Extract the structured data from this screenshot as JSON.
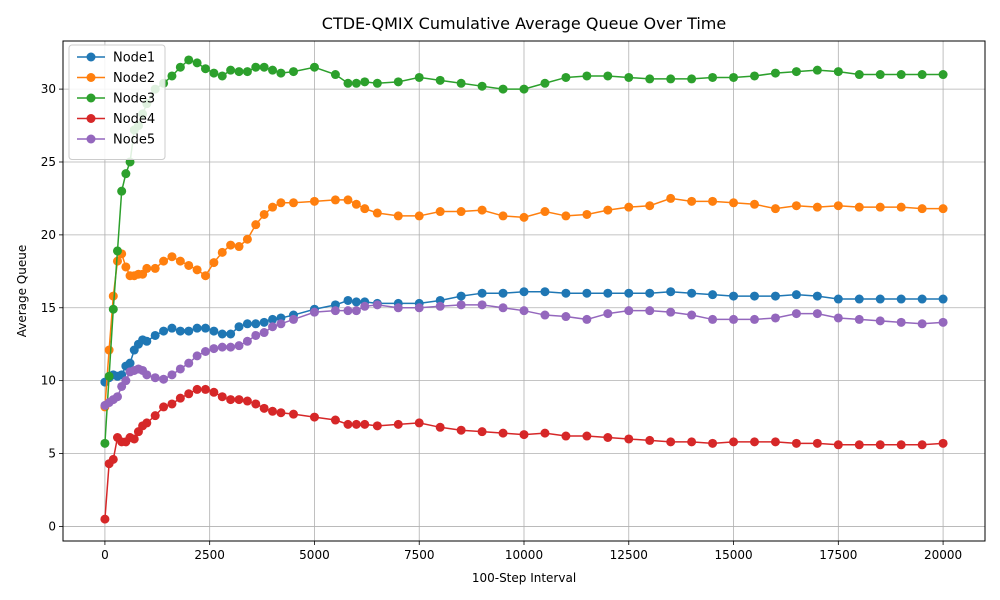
{
  "chart_data": {
    "type": "line",
    "title": "CTDE-QMIX Cumulative Average Queue Over Time",
    "xlabel": "100-Step Interval",
    "ylabel": "Average Queue",
    "xlim": [
      -1000,
      21000
    ],
    "ylim": [
      -1.0,
      33.3
    ],
    "xticks": [
      0,
      2500,
      5000,
      7500,
      10000,
      12500,
      15000,
      17500,
      20000
    ],
    "xtick_labels": [
      "0",
      "2500",
      "5000",
      "7500",
      "10000",
      "12500",
      "15000",
      "17500",
      "20000"
    ],
    "yticks": [
      0,
      5,
      10,
      15,
      20,
      25,
      30
    ],
    "ytick_labels": [
      "0",
      "5",
      "10",
      "15",
      "20",
      "25",
      "30"
    ],
    "grid": true,
    "legend_position": "upper-left",
    "x": [
      0,
      100,
      200,
      300,
      400,
      500,
      600,
      700,
      800,
      900,
      1000,
      1200,
      1400,
      1600,
      1800,
      2000,
      2200,
      2400,
      2600,
      2800,
      3000,
      3200,
      3400,
      3600,
      3800,
      4000,
      4200,
      4500,
      5000,
      5500,
      5800,
      6000,
      6200,
      6500,
      7000,
      7500,
      8000,
      8500,
      9000,
      9500,
      10000,
      10500,
      11000,
      11500,
      12000,
      12500,
      13000,
      13500,
      14000,
      14500,
      15000,
      15500,
      16000,
      16500,
      17000,
      17500,
      18000,
      18500,
      19000,
      19500,
      20000
    ],
    "series": [
      {
        "name": "Node1",
        "color": "#1f77b4",
        "values": [
          9.9,
          10.2,
          10.4,
          10.3,
          10.4,
          11.0,
          11.2,
          12.1,
          12.5,
          12.8,
          12.7,
          13.1,
          13.4,
          13.6,
          13.4,
          13.4,
          13.6,
          13.6,
          13.4,
          13.2,
          13.2,
          13.7,
          13.9,
          13.9,
          14.0,
          14.2,
          14.3,
          14.5,
          14.9,
          15.2,
          15.5,
          15.4,
          15.4,
          15.3,
          15.3,
          15.3,
          15.5,
          15.8,
          16.0,
          16.0,
          16.1,
          16.1,
          16.0,
          16.0,
          16.0,
          16.0,
          16.0,
          16.1,
          16.0,
          15.9,
          15.8,
          15.8,
          15.8,
          15.9,
          15.8,
          15.6,
          15.6,
          15.6,
          15.6,
          15.6,
          15.6
        ]
      },
      {
        "name": "Node2",
        "color": "#ff7f0e",
        "values": [
          8.2,
          12.1,
          15.8,
          18.2,
          18.7,
          17.8,
          17.2,
          17.2,
          17.3,
          17.3,
          17.7,
          17.7,
          18.2,
          18.5,
          18.2,
          17.9,
          17.6,
          17.2,
          18.1,
          18.8,
          19.3,
          19.2,
          19.7,
          20.7,
          21.4,
          21.9,
          22.2,
          22.2,
          22.3,
          22.4,
          22.4,
          22.1,
          21.8,
          21.5,
          21.3,
          21.3,
          21.6,
          21.6,
          21.7,
          21.3,
          21.2,
          21.6,
          21.3,
          21.4,
          21.7,
          21.9,
          22.0,
          22.5,
          22.3,
          22.3,
          22.2,
          22.1,
          21.8,
          22.0,
          21.9,
          22.0,
          21.9,
          21.9,
          21.9,
          21.8,
          21.8
        ]
      },
      {
        "name": "Node3",
        "color": "#2ca02c",
        "values": [
          5.7,
          10.3,
          14.9,
          18.9,
          23.0,
          24.2,
          25.0,
          27.2,
          27.5,
          28.3,
          29.0,
          30.0,
          30.4,
          30.9,
          31.5,
          32.0,
          31.8,
          31.4,
          31.1,
          30.9,
          31.3,
          31.2,
          31.2,
          31.5,
          31.5,
          31.3,
          31.1,
          31.2,
          31.5,
          31.0,
          30.4,
          30.4,
          30.5,
          30.4,
          30.5,
          30.8,
          30.6,
          30.4,
          30.2,
          30.0,
          30.0,
          30.4,
          30.8,
          30.9,
          30.9,
          30.8,
          30.7,
          30.7,
          30.7,
          30.8,
          30.8,
          30.9,
          31.1,
          31.2,
          31.3,
          31.2,
          31.0,
          31.0,
          31.0,
          31.0,
          31.0
        ]
      },
      {
        "name": "Node4",
        "color": "#d62728",
        "values": [
          0.5,
          4.3,
          4.6,
          6.1,
          5.8,
          5.8,
          6.1,
          6.0,
          6.5,
          6.9,
          7.1,
          7.6,
          8.2,
          8.4,
          8.8,
          9.1,
          9.4,
          9.4,
          9.2,
          8.9,
          8.7,
          8.7,
          8.6,
          8.4,
          8.1,
          7.9,
          7.8,
          7.7,
          7.5,
          7.3,
          7.0,
          7.0,
          7.0,
          6.9,
          7.0,
          7.1,
          6.8,
          6.6,
          6.5,
          6.4,
          6.3,
          6.4,
          6.2,
          6.2,
          6.1,
          6.0,
          5.9,
          5.8,
          5.8,
          5.7,
          5.8,
          5.8,
          5.8,
          5.7,
          5.7,
          5.6,
          5.6,
          5.6,
          5.6,
          5.6,
          5.7
        ]
      },
      {
        "name": "Node5",
        "color": "#9467bd",
        "values": [
          8.3,
          8.5,
          8.7,
          8.9,
          9.6,
          10.0,
          10.6,
          10.7,
          10.8,
          10.7,
          10.4,
          10.2,
          10.1,
          10.4,
          10.8,
          11.2,
          11.7,
          12.0,
          12.2,
          12.3,
          12.3,
          12.4,
          12.7,
          13.1,
          13.3,
          13.7,
          13.9,
          14.2,
          14.7,
          14.8,
          14.8,
          14.8,
          15.1,
          15.2,
          15.0,
          15.0,
          15.1,
          15.2,
          15.2,
          15.0,
          14.8,
          14.5,
          14.4,
          14.2,
          14.6,
          14.8,
          14.8,
          14.7,
          14.5,
          14.2,
          14.2,
          14.2,
          14.3,
          14.6,
          14.6,
          14.3,
          14.2,
          14.1,
          14.0,
          13.9,
          14.0
        ]
      }
    ]
  }
}
